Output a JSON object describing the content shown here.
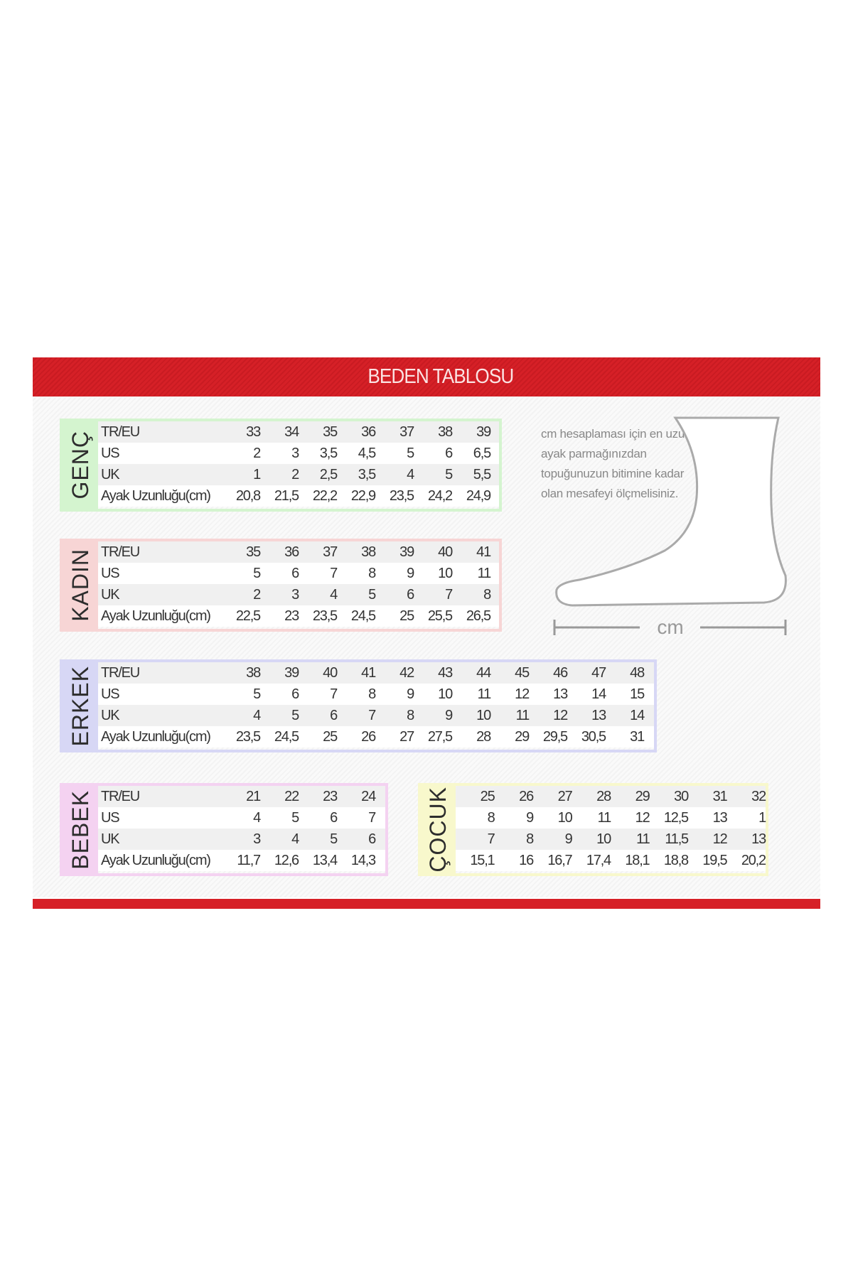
{
  "title": "BEDEN TABLOSU",
  "row_labels": [
    "TR/EU",
    "US",
    "UK",
    "Ayak Uzunluğu(cm)"
  ],
  "note": "cm hesaplaması için en uzun ayak parmağınızdan topuğunuzun bitimine kadar olan mesafeyi ölçmelisiniz.",
  "foot_unit": "cm",
  "colors": {
    "header": "#d62027",
    "genc": "#d4f4cf",
    "kadin": "#f7d5d5",
    "erkek": "#d7d7f5",
    "bebek": "#f4d2f1",
    "cocuk": "#f8f8cc"
  },
  "tables": {
    "genc": {
      "name": "GENÇ",
      "rows": [
        [
          "33",
          "34",
          "35",
          "36",
          "37",
          "38",
          "39"
        ],
        [
          "2",
          "3",
          "3,5",
          "4,5",
          "5",
          "6",
          "6,5"
        ],
        [
          "1",
          "2",
          "2,5",
          "3,5",
          "4",
          "5",
          "5,5"
        ],
        [
          "20,8",
          "21,5",
          "22,2",
          "22,9",
          "23,5",
          "24,2",
          "24,9"
        ]
      ]
    },
    "kadin": {
      "name": "KADIN",
      "rows": [
        [
          "35",
          "36",
          "37",
          "38",
          "39",
          "40",
          "41"
        ],
        [
          "5",
          "6",
          "7",
          "8",
          "9",
          "10",
          "11"
        ],
        [
          "2",
          "3",
          "4",
          "5",
          "6",
          "7",
          "8"
        ],
        [
          "22,5",
          "23",
          "23,5",
          "24,5",
          "25",
          "25,5",
          "26,5"
        ]
      ]
    },
    "erkek": {
      "name": "ERKEK",
      "rows": [
        [
          "38",
          "39",
          "40",
          "41",
          "42",
          "43",
          "44",
          "45",
          "46",
          "47",
          "48"
        ],
        [
          "5",
          "6",
          "7",
          "8",
          "9",
          "10",
          "11",
          "12",
          "13",
          "14",
          "15"
        ],
        [
          "4",
          "5",
          "6",
          "7",
          "8",
          "9",
          "10",
          "11",
          "12",
          "13",
          "14"
        ],
        [
          "23,5",
          "24,5",
          "25",
          "26",
          "27",
          "27,5",
          "28",
          "29",
          "29,5",
          "30,5",
          "31"
        ]
      ]
    },
    "bebek": {
      "name": "BEBEK",
      "rows": [
        [
          "21",
          "22",
          "23",
          "24"
        ],
        [
          "4",
          "5",
          "6",
          "7"
        ],
        [
          "3",
          "4",
          "5",
          "6"
        ],
        [
          "11,7",
          "12,6",
          "13,4",
          "14,3"
        ]
      ]
    },
    "cocuk": {
      "name": "ÇOCUK",
      "rows": [
        [
          "25",
          "26",
          "27",
          "28",
          "29",
          "30",
          "31",
          "32"
        ],
        [
          "8",
          "9",
          "10",
          "11",
          "12",
          "12,5",
          "13",
          "1"
        ],
        [
          "7",
          "8",
          "9",
          "10",
          "11",
          "11,5",
          "12",
          "13"
        ],
        [
          "15,1",
          "16",
          "16,7",
          "17,4",
          "18,1",
          "18,8",
          "19,5",
          "20,2"
        ]
      ]
    }
  }
}
